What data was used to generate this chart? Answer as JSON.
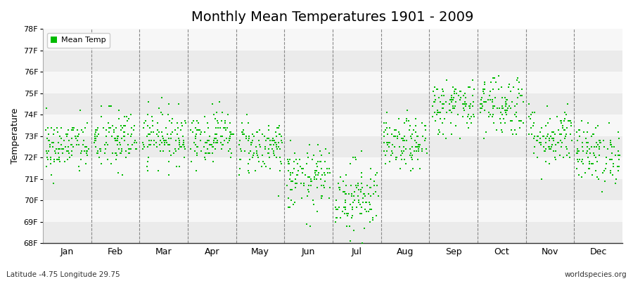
{
  "title": "Monthly Mean Temperatures 1901 - 2009",
  "ylabel": "Temperature",
  "ylim": [
    68,
    78
  ],
  "yticks": [
    68,
    69,
    70,
    71,
    72,
    73,
    74,
    75,
    76,
    77,
    78
  ],
  "ytick_labels": [
    "68F",
    "69F",
    "70F",
    "71F",
    "72F",
    "73F",
    "74F",
    "75F",
    "76F",
    "77F",
    "78F"
  ],
  "months": [
    "Jan",
    "Feb",
    "Mar",
    "Apr",
    "May",
    "Jun",
    "Jul",
    "Aug",
    "Sep",
    "Oct",
    "Nov",
    "Dec"
  ],
  "marker_color": "#00bb00",
  "marker": "s",
  "marker_size": 2,
  "legend_label": "Mean Temp",
  "bottom_left": "Latitude -4.75 Longitude 29.75",
  "bottom_right": "worldspecies.org",
  "background_color": "#ffffff",
  "band_colors": [
    "#ebebeb",
    "#f7f7f7"
  ],
  "title_fontsize": 14,
  "n_years": 109,
  "monthly_means": [
    72.5,
    72.8,
    73.0,
    73.0,
    72.5,
    71.0,
    70.2,
    72.6,
    74.4,
    74.5,
    73.0,
    72.2
  ],
  "monthly_stds": [
    0.65,
    0.75,
    0.65,
    0.6,
    0.65,
    0.75,
    0.85,
    0.6,
    0.65,
    0.75,
    0.7,
    0.7
  ],
  "seed": 42
}
